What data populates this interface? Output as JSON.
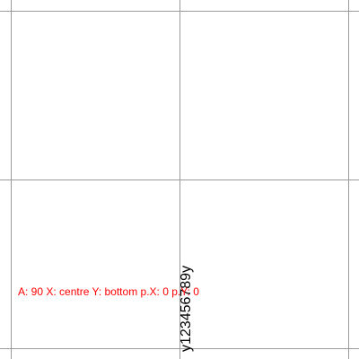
{
  "readout": {
    "text": "A: 90 X: centre Y: bottom p.X: 0 p.Y: 0",
    "color": "#ff0000"
  },
  "sample_text": {
    "text": "y123456789y",
    "color": "#000000"
  },
  "grid": {
    "color": "#9a9a9a"
  }
}
